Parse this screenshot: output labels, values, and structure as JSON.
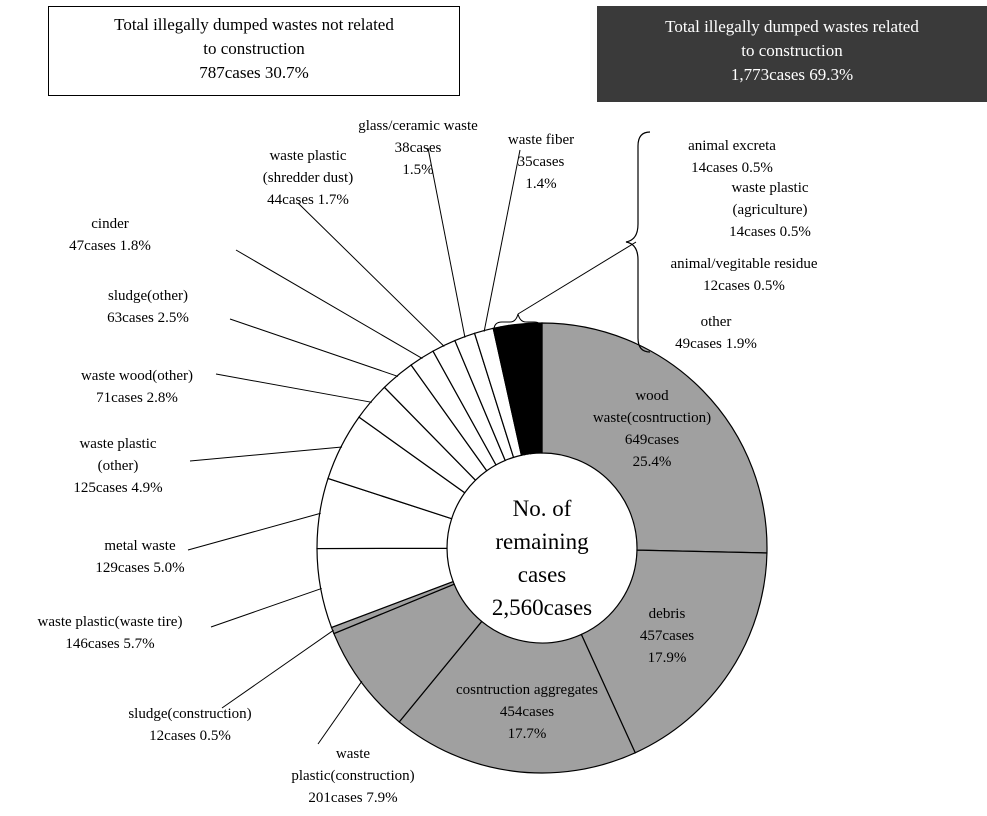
{
  "groups": {
    "non_construction": {
      "line1": "Total illegally dumped wastes not related",
      "line2": "to construction",
      "line3": "787cases   30.7%"
    },
    "construction": {
      "line1": "Total illegally dumped wastes related",
      "line2": "to construction",
      "line3": "1,773cases   69.3%"
    }
  },
  "center": [
    "No. of",
    "remaining",
    "cases",
    "2,560cases"
  ],
  "colors": {
    "construction": "#a0a0a0",
    "non_construction": "#ffffff",
    "small": "#000000",
    "outline": "#000000"
  },
  "chart_data": {
    "type": "pie",
    "total": 2560,
    "slices": [
      {
        "name": "wood waste(cosntruction)",
        "cases": 649,
        "percent": 25.4,
        "group": "construction",
        "label": [
          "wood",
          "waste(cosntruction)",
          "649cases",
          "25.4%"
        ]
      },
      {
        "name": "debris",
        "cases": 457,
        "percent": 17.9,
        "group": "construction",
        "label": [
          "debris",
          "457cases",
          "17.9%"
        ]
      },
      {
        "name": "cosntruction aggregates",
        "cases": 454,
        "percent": 17.7,
        "group": "construction",
        "label": [
          "cosntruction aggregates",
          "454cases",
          "17.7%"
        ]
      },
      {
        "name": "waste plastic(construction)",
        "cases": 201,
        "percent": 7.9,
        "group": "construction",
        "label": [
          "waste",
          "plastic(construction)",
          "201cases    7.9%"
        ]
      },
      {
        "name": "sludge(construction)",
        "cases": 12,
        "percent": 0.5,
        "group": "construction",
        "label": [
          "sludge(construction)",
          "12cases     0.5%"
        ]
      },
      {
        "name": "waste plastic(waste tire)",
        "cases": 146,
        "percent": 5.7,
        "group": "non_construction",
        "label": [
          "waste plastic(waste tire)",
          "146cases     5.7%"
        ]
      },
      {
        "name": "metal waste",
        "cases": 129,
        "percent": 5.0,
        "group": "non_construction",
        "label": [
          "metal waste",
          "129cases   5.0%"
        ]
      },
      {
        "name": "waste plastic(other)",
        "cases": 125,
        "percent": 4.9,
        "group": "non_construction",
        "label": [
          "waste plastic",
          "(other)",
          "125cases     4.9%"
        ]
      },
      {
        "name": "waste wood(other)",
        "cases": 71,
        "percent": 2.8,
        "group": "non_construction",
        "label": [
          "waste wood(other)",
          "71cases      2.8%"
        ]
      },
      {
        "name": "sludge(other)",
        "cases": 63,
        "percent": 2.5,
        "group": "non_construction",
        "label": [
          "sludge(other)",
          "63cases   2.5%"
        ]
      },
      {
        "name": "cinder",
        "cases": 47,
        "percent": 1.8,
        "group": "non_construction",
        "label": [
          "cinder",
          "47cases   1.8%"
        ]
      },
      {
        "name": "waste plastic(shredder dust)",
        "cases": 44,
        "percent": 1.7,
        "group": "non_construction",
        "label": [
          "waste plastic",
          "(shredder dust)",
          "44cases     1.7%"
        ]
      },
      {
        "name": "glass/ceramic waste",
        "cases": 38,
        "percent": 1.5,
        "group": "non_construction",
        "label": [
          "glass/ceramic waste",
          "38cases",
          "1.5%"
        ]
      },
      {
        "name": "waste fiber",
        "cases": 35,
        "percent": 1.4,
        "group": "non_construction",
        "label": [
          "waste fiber",
          "35cases",
          "1.4%"
        ]
      },
      {
        "name": "animal excreta",
        "cases": 14,
        "percent": 0.5,
        "group": "small",
        "label": [
          "animal excreta",
          "14cases     0.5%"
        ]
      },
      {
        "name": "waste plastic(agriculture)",
        "cases": 14,
        "percent": 0.5,
        "group": "small",
        "label": [
          "waste plastic",
          "(agriculture)",
          "14cases     0.5%"
        ]
      },
      {
        "name": "animal/vegitable residue",
        "cases": 12,
        "percent": 0.5,
        "group": "small",
        "label": [
          "animal/vegitable residue",
          "12cases     0.5%"
        ]
      },
      {
        "name": "other",
        "cases": 49,
        "percent": 1.9,
        "group": "small",
        "label": [
          "other",
          "49cases      1.9%"
        ]
      }
    ]
  }
}
